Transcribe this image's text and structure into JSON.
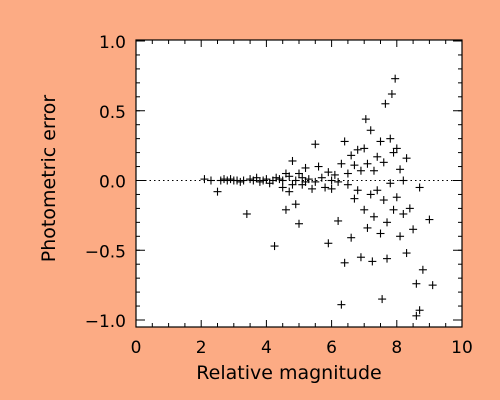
{
  "colors": {
    "background": "#fcab84",
    "plot_background": "#ffffff",
    "marker": "#000000"
  },
  "chart_data": {
    "type": "scatter",
    "title": "",
    "xlabel": "Relative magnitude",
    "ylabel": "Photometric error",
    "xlim": [
      0,
      10
    ],
    "ylim": [
      -1.05,
      1.0
    ],
    "xticks": [
      0,
      2,
      4,
      6,
      8,
      10
    ],
    "yticks": [
      1.0,
      0.5,
      0.0,
      -0.5,
      -1.0
    ],
    "xtick_labels": [
      "0",
      "2",
      "4",
      "6",
      "8",
      "10"
    ],
    "ytick_labels": [
      "1.0",
      "0.5",
      "0.0",
      "−0.5",
      "−1.0"
    ],
    "grid": false,
    "reference_line": {
      "y": 0.0,
      "style": "dotted"
    },
    "marker": "+",
    "points": [
      [
        2.1,
        0.01
      ],
      [
        2.3,
        0.0
      ],
      [
        2.5,
        -0.08
      ],
      [
        2.6,
        0.0
      ],
      [
        2.7,
        0.01
      ],
      [
        2.8,
        0.0
      ],
      [
        2.9,
        0.01
      ],
      [
        3.0,
        0.0
      ],
      [
        3.1,
        0.0
      ],
      [
        3.2,
        -0.01
      ],
      [
        3.3,
        0.0
      ],
      [
        3.4,
        -0.24
      ],
      [
        3.5,
        0.01
      ],
      [
        3.6,
        0.0
      ],
      [
        3.7,
        0.02
      ],
      [
        3.8,
        -0.01
      ],
      [
        3.9,
        0.0
      ],
      [
        4.0,
        0.01
      ],
      [
        4.1,
        -0.02
      ],
      [
        4.2,
        0.0
      ],
      [
        4.25,
        -0.47
      ],
      [
        4.3,
        0.02
      ],
      [
        4.4,
        0.01
      ],
      [
        4.5,
        0.0
      ],
      [
        4.5,
        -0.05
      ],
      [
        4.6,
        0.05
      ],
      [
        4.6,
        -0.21
      ],
      [
        4.7,
        0.03
      ],
      [
        4.7,
        -0.08
      ],
      [
        4.8,
        0.14
      ],
      [
        4.8,
        -0.03
      ],
      [
        4.9,
        0.0
      ],
      [
        4.9,
        -0.17
      ],
      [
        5.0,
        0.05
      ],
      [
        5.0,
        -0.31
      ],
      [
        5.1,
        0.02
      ],
      [
        5.1,
        -0.03
      ],
      [
        5.2,
        0.09
      ],
      [
        5.2,
        -0.01
      ],
      [
        5.3,
        0.01
      ],
      [
        5.4,
        -0.06
      ],
      [
        5.5,
        0.26
      ],
      [
        5.5,
        -0.01
      ],
      [
        5.6,
        0.1
      ],
      [
        5.7,
        0.02
      ],
      [
        5.8,
        -0.05
      ],
      [
        5.9,
        0.06
      ],
      [
        5.9,
        -0.45
      ],
      [
        6.0,
        0.0
      ],
      [
        6.0,
        -0.06
      ],
      [
        6.1,
        0.04
      ],
      [
        6.2,
        -0.01
      ],
      [
        6.2,
        -0.29
      ],
      [
        6.3,
        0.12
      ],
      [
        6.3,
        -0.89
      ],
      [
        6.4,
        0.28
      ],
      [
        6.4,
        -0.59
      ],
      [
        6.5,
        0.05
      ],
      [
        6.5,
        -0.03
      ],
      [
        6.6,
        0.18
      ],
      [
        6.6,
        -0.41
      ],
      [
        6.7,
        0.11
      ],
      [
        6.7,
        -0.13
      ],
      [
        6.8,
        0.22
      ],
      [
        6.8,
        -0.07
      ],
      [
        6.9,
        0.07
      ],
      [
        6.9,
        -0.55
      ],
      [
        7.0,
        0.23
      ],
      [
        7.0,
        -0.21
      ],
      [
        7.05,
        0.44
      ],
      [
        7.1,
        0.12
      ],
      [
        7.1,
        -0.34
      ],
      [
        7.2,
        0.36
      ],
      [
        7.2,
        -0.1
      ],
      [
        7.25,
        -0.58
      ],
      [
        7.3,
        0.07
      ],
      [
        7.3,
        -0.26
      ],
      [
        7.4,
        0.17
      ],
      [
        7.4,
        -0.07
      ],
      [
        7.5,
        0.28
      ],
      [
        7.5,
        -0.38
      ],
      [
        7.55,
        -0.85
      ],
      [
        7.6,
        0.13
      ],
      [
        7.6,
        -0.14
      ],
      [
        7.65,
        0.55
      ],
      [
        7.7,
        -0.3
      ],
      [
        7.7,
        -0.56
      ],
      [
        7.8,
        0.3
      ],
      [
        7.8,
        -0.02
      ],
      [
        7.85,
        0.62
      ],
      [
        7.9,
        0.2
      ],
      [
        7.9,
        -0.21
      ],
      [
        7.95,
        0.73
      ],
      [
        8.0,
        0.23
      ],
      [
        8.0,
        -0.12
      ],
      [
        8.1,
        0.08
      ],
      [
        8.1,
        -0.4
      ],
      [
        8.2,
        0.0
      ],
      [
        8.2,
        -0.24
      ],
      [
        8.3,
        0.16
      ],
      [
        8.3,
        -0.52
      ],
      [
        8.4,
        -0.2
      ],
      [
        8.5,
        -0.35
      ],
      [
        8.6,
        -0.74
      ],
      [
        8.6,
        -0.97
      ],
      [
        8.7,
        -0.05
      ],
      [
        8.7,
        -0.93
      ],
      [
        8.8,
        -0.64
      ],
      [
        9.0,
        -0.28
      ],
      [
        9.1,
        -0.75
      ]
    ]
  }
}
